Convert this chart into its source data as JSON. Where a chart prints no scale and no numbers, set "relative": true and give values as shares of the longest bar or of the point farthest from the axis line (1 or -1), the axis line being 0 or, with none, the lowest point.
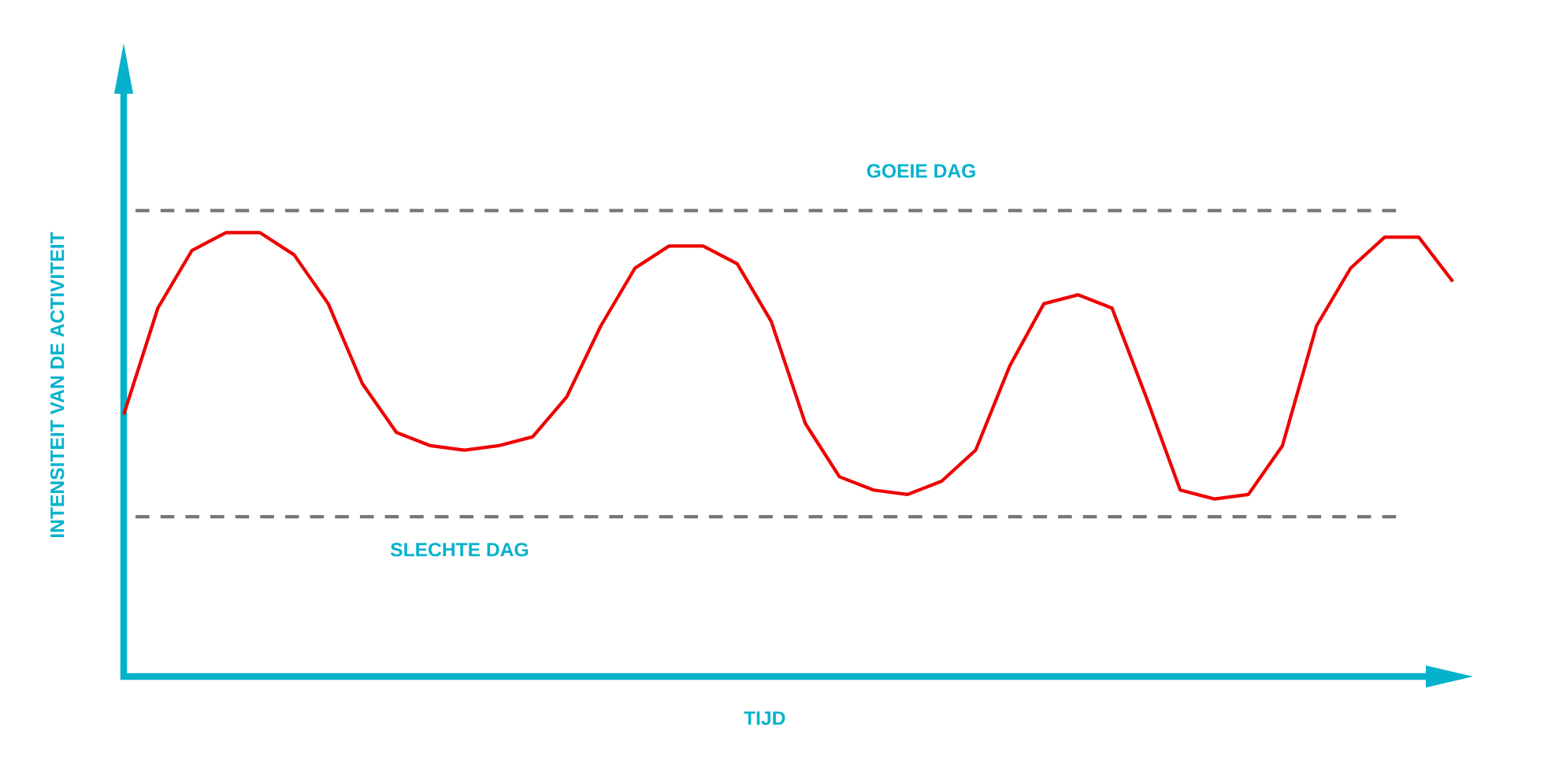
{
  "chart_data": {
    "type": "line",
    "relative": true,
    "xlabel": "TIJD",
    "ylabel": "INTENSITEIT VAN DE ACTIVITEIT",
    "categories": [
      null,
      null,
      null,
      null,
      null,
      null,
      null,
      null,
      null,
      null,
      null,
      null,
      null,
      null,
      null,
      null,
      null,
      null,
      null,
      null,
      null,
      null,
      null,
      null,
      null,
      null,
      null,
      null,
      null,
      null,
      null,
      null,
      null,
      null,
      null,
      null,
      null,
      null,
      null,
      null
    ],
    "series": [
      {
        "color": "#ee0000",
        "values": [
          0.59,
          0.83,
          0.96,
          1.0,
          1.0,
          0.95,
          0.84,
          0.66,
          0.55,
          0.52,
          0.51,
          0.52,
          0.54,
          0.63,
          0.79,
          0.92,
          0.97,
          0.97,
          0.93,
          0.8,
          0.57,
          0.45,
          0.42,
          0.41,
          0.44,
          0.51,
          0.7,
          0.84,
          0.86,
          0.83,
          0.63,
          0.42,
          0.4,
          0.41,
          0.52,
          0.79,
          0.92,
          0.99,
          0.99,
          0.89
        ]
      }
    ],
    "ref_lines": [
      {
        "axis": "y",
        "value": 1.05,
        "label": "GOEIE DAG",
        "color": "#777777",
        "line_style": "dashed"
      },
      {
        "axis": "y",
        "value": 0.36,
        "label": "SLECHTE DAG",
        "color": "#777777",
        "line_style": "dashed"
      }
    ],
    "marker": "none",
    "line_style": "solid"
  }
}
